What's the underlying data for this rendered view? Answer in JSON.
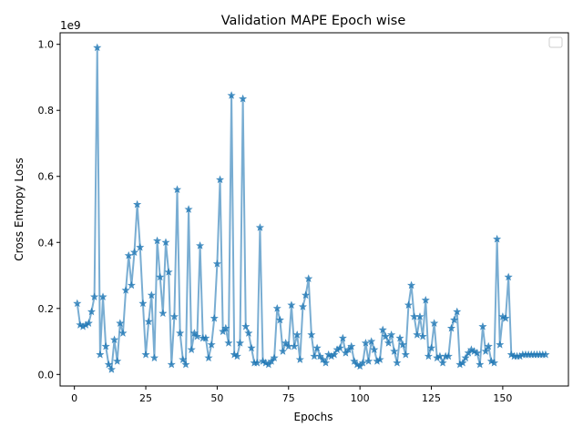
{
  "chart_data": {
    "type": "line",
    "title": "Validation MAPE Epoch wise",
    "xlabel": "Epochs",
    "ylabel": "Cross Entropy Loss",
    "y_scale_label": "1e9",
    "xlim": [
      -5,
      173
    ],
    "ylim": [
      -0.035,
      1.035
    ],
    "x_ticks": [
      0,
      25,
      50,
      75,
      100,
      125,
      150
    ],
    "y_ticks": [
      0.0,
      0.2,
      0.4,
      0.6,
      0.8,
      1.0
    ],
    "x_tick_labels": [
      "0",
      "25",
      "50",
      "75",
      "100",
      "125",
      "150"
    ],
    "y_tick_labels": [
      "0.0",
      "0.2",
      "0.4",
      "0.6",
      "0.8",
      "1.0"
    ],
    "grid": false,
    "legend": "top-right (empty)",
    "series": [
      {
        "color": "#1f77b4",
        "marker": "star",
        "x": [
          1,
          2,
          3,
          4,
          5,
          6,
          7,
          8,
          9,
          10,
          11,
          12,
          13,
          14,
          15,
          16,
          17,
          18,
          19,
          20,
          21,
          22,
          23,
          24,
          25,
          26,
          27,
          28,
          29,
          30,
          31,
          32,
          33,
          34,
          35,
          36,
          37,
          38,
          39,
          40,
          41,
          42,
          43,
          44,
          45,
          46,
          47,
          48,
          49,
          50,
          51,
          52,
          53,
          54,
          55,
          56,
          57,
          58,
          59,
          60,
          61,
          62,
          63,
          64,
          65,
          66,
          67,
          68,
          69,
          70,
          71,
          72,
          73,
          74,
          75,
          76,
          77,
          78,
          79,
          80,
          81,
          82,
          83,
          84,
          85,
          86,
          87,
          88,
          89,
          90,
          91,
          92,
          93,
          94,
          95,
          96,
          97,
          98,
          99,
          100,
          101,
          102,
          103,
          104,
          105,
          106,
          107,
          108,
          109,
          110,
          111,
          112,
          113,
          114,
          115,
          116,
          117,
          118,
          119,
          120,
          121,
          122,
          123,
          124,
          125,
          126,
          127,
          128,
          129,
          130,
          131,
          132,
          133,
          134,
          135,
          136,
          137,
          138,
          139,
          140,
          141,
          142,
          143,
          144,
          145,
          146,
          147,
          148,
          149,
          150,
          151,
          152,
          153,
          154,
          155,
          156,
          157,
          158,
          159,
          160,
          161,
          162,
          163,
          164,
          165
        ],
        "y": [
          0.215,
          0.15,
          0.145,
          0.15,
          0.155,
          0.19,
          0.235,
          0.99,
          0.06,
          0.235,
          0.085,
          0.03,
          0.015,
          0.105,
          0.04,
          0.155,
          0.125,
          0.255,
          0.36,
          0.27,
          0.37,
          0.515,
          0.385,
          0.215,
          0.06,
          0.16,
          0.24,
          0.05,
          0.405,
          0.295,
          0.185,
          0.4,
          0.31,
          0.03,
          0.175,
          0.56,
          0.125,
          0.045,
          0.03,
          0.5,
          0.075,
          0.125,
          0.115,
          0.39,
          0.11,
          0.11,
          0.05,
          0.09,
          0.17,
          0.335,
          0.59,
          0.13,
          0.14,
          0.095,
          0.845,
          0.06,
          0.055,
          0.095,
          0.835,
          0.145,
          0.125,
          0.08,
          0.035,
          0.035,
          0.445,
          0.04,
          0.035,
          0.03,
          0.04,
          0.05,
          0.2,
          0.165,
          0.07,
          0.095,
          0.085,
          0.21,
          0.085,
          0.12,
          0.045,
          0.205,
          0.24,
          0.29,
          0.12,
          0.055,
          0.08,
          0.055,
          0.045,
          0.035,
          0.06,
          0.055,
          0.06,
          0.075,
          0.08,
          0.11,
          0.065,
          0.075,
          0.085,
          0.04,
          0.03,
          0.025,
          0.035,
          0.095,
          0.04,
          0.1,
          0.075,
          0.04,
          0.045,
          0.135,
          0.115,
          0.095,
          0.12,
          0.07,
          0.035,
          0.11,
          0.09,
          0.06,
          0.21,
          0.27,
          0.175,
          0.12,
          0.175,
          0.115,
          0.225,
          0.055,
          0.08,
          0.155,
          0.05,
          0.055,
          0.035,
          0.055,
          0.055,
          0.14,
          0.165,
          0.19,
          0.03,
          0.035,
          0.05,
          0.065,
          0.075,
          0.07,
          0.065,
          0.03,
          0.145,
          0.07,
          0.085,
          0.04,
          0.035,
          0.41,
          0.09,
          0.175,
          0.17,
          0.295,
          0.06,
          0.055,
          0.055,
          0.055,
          0.06,
          0.06,
          0.06,
          0.06,
          0.06,
          0.06,
          0.06,
          0.06,
          0.06
        ]
      }
    ]
  }
}
